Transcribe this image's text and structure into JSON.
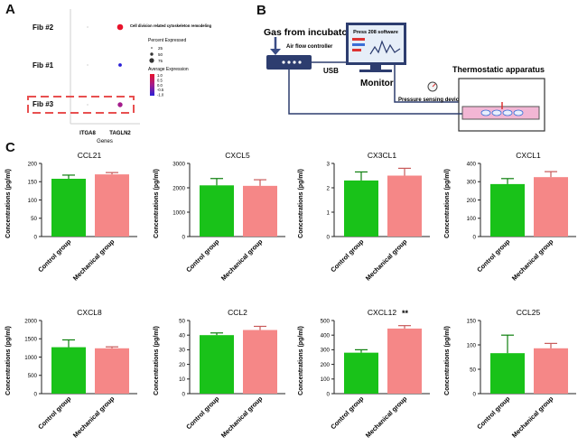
{
  "panel_labels": {
    "a": "A",
    "b": "B",
    "c": "C"
  },
  "panelA": {
    "rows": [
      "Fib  #2",
      "Fib  #1",
      "Fib  #3"
    ],
    "x_ticks": [
      "ITGA8",
      "TAGLN2"
    ],
    "x_label": "Genes",
    "annotation": "Cell division related cytoskeleton remodeling",
    "size_legend_title": "Percent Expressed",
    "size_legend_values": [
      "25",
      "50",
      "75"
    ],
    "color_legend_title": "Average Expression",
    "color_legend_values": [
      "1.0",
      "0.5",
      "0.0",
      "-0.5",
      "-1.0"
    ],
    "dots": [
      {
        "row": 0,
        "col": 1,
        "percent": 75,
        "avg": 1.0,
        "color": "#e8132b"
      },
      {
        "row": 1,
        "col": 1,
        "percent": 25,
        "avg": -1.0,
        "color": "#2a1fd6"
      },
      {
        "row": 2,
        "col": 1,
        "percent": 50,
        "avg": 0.0,
        "color": "#a41c8c"
      },
      {
        "row": 0,
        "col": 0,
        "percent": 3,
        "avg": 0.0,
        "color": "#bbbbbb"
      },
      {
        "row": 1,
        "col": 0,
        "percent": 3,
        "avg": 0.0,
        "color": "#bbbbbb"
      },
      {
        "row": 2,
        "col": 0,
        "percent": 3,
        "avg": 0.0,
        "color": "#bbbbbb"
      }
    ]
  },
  "panelB": {
    "gas_label": "Gas from incubator",
    "controller_label": "Air flow controller",
    "usb_label": "USB",
    "software_label": "Press 208 software",
    "monitor_label": "Monitor",
    "pressure_label": "Pressure sensing device",
    "thermostat_label": "Thermostatic apparatus"
  },
  "chart_colors": {
    "control": "#19c219",
    "mechanical": "#f58787"
  },
  "chart_data": [
    {
      "type": "bar",
      "title": "CCL21",
      "title_suffix": "",
      "ylabel": "Concentrations (pg/ml)",
      "categories": [
        "Control group",
        "Mechanical group"
      ],
      "values": [
        158,
        170
      ],
      "errors": [
        10,
        5
      ],
      "ylim": [
        0,
        200
      ],
      "yticks": [
        0,
        50,
        100,
        150,
        200
      ]
    },
    {
      "type": "bar",
      "title": "CXCL5",
      "title_suffix": "",
      "ylabel": "Concentrations (pg/ml)",
      "categories": [
        "Control group",
        "Mechanical group"
      ],
      "values": [
        2100,
        2080
      ],
      "errors": [
        280,
        250
      ],
      "ylim": [
        0,
        3000
      ],
      "yticks": [
        0,
        1000,
        2000,
        3000
      ]
    },
    {
      "type": "bar",
      "title": "CX3CL1",
      "title_suffix": "",
      "ylabel": "Concentrations (pg/ml)",
      "categories": [
        "Control group",
        "Mechanical group"
      ],
      "values": [
        2.3,
        2.5
      ],
      "errors": [
        0.35,
        0.3
      ],
      "ylim": [
        0,
        3
      ],
      "yticks": [
        0,
        1,
        2,
        3
      ]
    },
    {
      "type": "bar",
      "title": "CXCL1",
      "title_suffix": "",
      "ylabel": "Concentrations (pg/ml)",
      "categories": [
        "Control group",
        "Mechanical group"
      ],
      "values": [
        287,
        325
      ],
      "errors": [
        30,
        30
      ],
      "ylim": [
        0,
        400
      ],
      "yticks": [
        0,
        100,
        200,
        300,
        400
      ]
    },
    {
      "type": "bar",
      "title": "CXCL8",
      "title_suffix": "",
      "ylabel": "Concentrations (pg/ml)",
      "categories": [
        "Control group",
        "Mechanical group"
      ],
      "values": [
        1270,
        1240
      ],
      "errors": [
        200,
        40
      ],
      "ylim": [
        0,
        2000
      ],
      "yticks": [
        0,
        500,
        1000,
        1500,
        2000
      ]
    },
    {
      "type": "bar",
      "title": "CCL2",
      "title_suffix": "",
      "ylabel": "Concentrations (pg/ml)",
      "categories": [
        "Control group",
        "Mechanical group"
      ],
      "values": [
        40,
        43.5
      ],
      "errors": [
        1.5,
        2.5
      ],
      "ylim": [
        0,
        50
      ],
      "yticks": [
        0,
        10,
        20,
        30,
        40,
        50
      ]
    },
    {
      "type": "bar",
      "title": "CXCL12",
      "title_suffix": "**",
      "ylabel": "Concentrations (pg/ml)",
      "categories": [
        "Control group",
        "Mechanical group"
      ],
      "values": [
        280,
        445
      ],
      "errors": [
        20,
        20
      ],
      "ylim": [
        0,
        500
      ],
      "yticks": [
        0,
        100,
        200,
        300,
        400,
        500
      ]
    },
    {
      "type": "bar",
      "title": "CCL25",
      "title_suffix": "",
      "ylabel": "Concentrations (pg/ml)",
      "categories": [
        "Control group",
        "Mechanical group"
      ],
      "values": [
        83,
        93
      ],
      "errors": [
        37,
        10
      ],
      "ylim": [
        0,
        150
      ],
      "yticks": [
        0,
        50,
        100,
        150
      ]
    }
  ]
}
